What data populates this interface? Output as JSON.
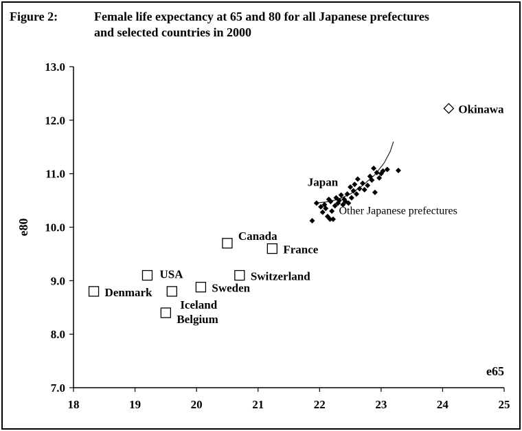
{
  "figure": {
    "label": "Figure 2:",
    "title_line1": "Female life expectancy at 65 and 80 for all Japanese prefectures",
    "title_line2": "and selected countries in 2000"
  },
  "chart_data": {
    "type": "scatter",
    "title": "Female life expectancy at 65 and 80 for all Japanese prefectures and selected countries in 2000",
    "xlabel": "e65",
    "ylabel": "e80",
    "xlim": [
      18,
      25
    ],
    "ylim": [
      7.0,
      13.0
    ],
    "xticks": [
      "18",
      "19",
      "20",
      "21",
      "22",
      "23",
      "24",
      "25"
    ],
    "yticks": [
      "7.0",
      "8.0",
      "9.0",
      "10.0",
      "11.0",
      "12.0",
      "13.0"
    ],
    "grid": false,
    "series": [
      {
        "name": "Countries",
        "marker": "square",
        "points": [
          {
            "label": "Denmark",
            "x": 18.33,
            "y": 8.8
          },
          {
            "label": "USA",
            "x": 19.2,
            "y": 9.1
          },
          {
            "label": "Iceland",
            "x": 19.6,
            "y": 8.8
          },
          {
            "label": "Belgium",
            "x": 19.5,
            "y": 8.4
          },
          {
            "label": "Sweden",
            "x": 20.07,
            "y": 8.88
          },
          {
            "label": "Canada",
            "x": 20.5,
            "y": 9.7
          },
          {
            "label": "Switzerland",
            "x": 20.7,
            "y": 9.1
          },
          {
            "label": "France",
            "x": 21.23,
            "y": 9.6
          }
        ]
      },
      {
        "name": "Okinawa",
        "marker": "diamond",
        "points": [
          {
            "label": "Okinawa",
            "x": 24.1,
            "y": 12.22
          }
        ]
      },
      {
        "name": "Other Japanese prefectures",
        "marker": "filled-diamond",
        "points": [
          {
            "x": 21.88,
            "y": 10.12
          },
          {
            "x": 21.95,
            "y": 10.45
          },
          {
            "x": 22.02,
            "y": 10.38
          },
          {
            "x": 22.05,
            "y": 10.28
          },
          {
            "x": 22.08,
            "y": 10.42
          },
          {
            "x": 22.1,
            "y": 10.35
          },
          {
            "x": 22.13,
            "y": 10.2
          },
          {
            "x": 22.15,
            "y": 10.52
          },
          {
            "x": 22.17,
            "y": 10.15
          },
          {
            "x": 22.18,
            "y": 10.48
          },
          {
            "x": 22.2,
            "y": 10.3
          },
          {
            "x": 22.22,
            "y": 10.15
          },
          {
            "x": 22.25,
            "y": 10.4
          },
          {
            "x": 22.27,
            "y": 10.55
          },
          {
            "x": 22.3,
            "y": 10.45
          },
          {
            "x": 22.32,
            "y": 10.5
          },
          {
            "x": 22.35,
            "y": 10.6
          },
          {
            "x": 22.38,
            "y": 10.42
          },
          {
            "x": 22.4,
            "y": 10.52
          },
          {
            "x": 22.42,
            "y": 10.48
          },
          {
            "x": 22.45,
            "y": 10.62
          },
          {
            "x": 22.47,
            "y": 10.45
          },
          {
            "x": 22.5,
            "y": 10.75
          },
          {
            "x": 22.52,
            "y": 10.55
          },
          {
            "x": 22.55,
            "y": 10.68
          },
          {
            "x": 22.57,
            "y": 10.8
          },
          {
            "x": 22.6,
            "y": 10.62
          },
          {
            "x": 22.62,
            "y": 10.9
          },
          {
            "x": 22.65,
            "y": 10.72
          },
          {
            "x": 22.7,
            "y": 10.82
          },
          {
            "x": 22.73,
            "y": 10.7
          },
          {
            "x": 22.78,
            "y": 10.78
          },
          {
            "x": 22.82,
            "y": 10.95
          },
          {
            "x": 22.85,
            "y": 10.88
          },
          {
            "x": 22.88,
            "y": 11.1
          },
          {
            "x": 22.9,
            "y": 10.65
          },
          {
            "x": 22.93,
            "y": 11.02
          },
          {
            "x": 22.97,
            "y": 10.92
          },
          {
            "x": 23.0,
            "y": 11.0
          },
          {
            "x": 23.03,
            "y": 11.05
          },
          {
            "x": 23.1,
            "y": 11.08
          },
          {
            "x": 23.28,
            "y": 11.06
          }
        ]
      }
    ],
    "trend_curve": [
      {
        "x": 21.92,
        "y": 10.45
      },
      {
        "x": 22.1,
        "y": 10.47
      },
      {
        "x": 22.3,
        "y": 10.52
      },
      {
        "x": 22.5,
        "y": 10.62
      },
      {
        "x": 22.7,
        "y": 10.78
      },
      {
        "x": 22.9,
        "y": 10.98
      },
      {
        "x": 23.05,
        "y": 11.2
      },
      {
        "x": 23.15,
        "y": 11.42
      },
      {
        "x": 23.2,
        "y": 11.6
      }
    ],
    "annotations": [
      {
        "text": "Japan",
        "x": 22.3,
        "y": 10.85
      },
      {
        "text": "Other Japanese prefectures",
        "x": 22.65,
        "y": 10.22
      }
    ]
  }
}
